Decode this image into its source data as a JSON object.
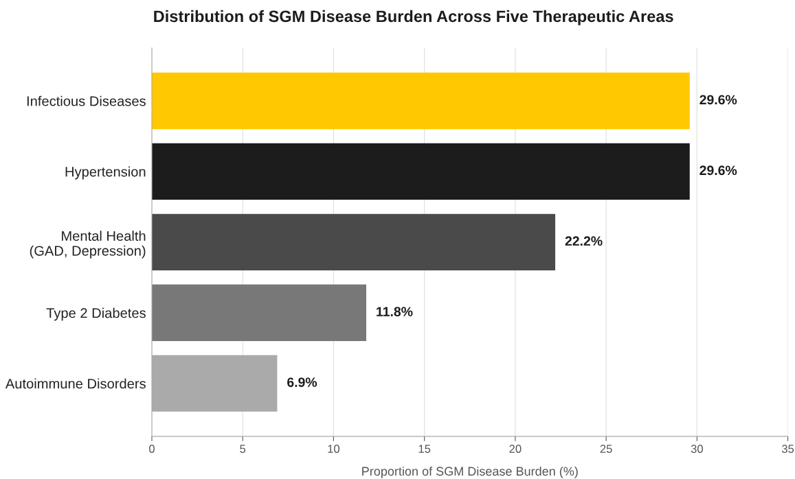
{
  "chart_data": {
    "type": "bar",
    "orientation": "horizontal",
    "title": "Distribution of SGM Disease Burden Across Five Therapeutic Areas",
    "xlabel": "Proportion of SGM Disease Burden (%)",
    "categories": [
      "Infectious Diseases",
      "Hypertension",
      "Mental Health\n(GAD, Depression)",
      "Type 2 Diabetes",
      "Autoimmune Disorders"
    ],
    "values": [
      29.6,
      29.6,
      22.2,
      11.8,
      6.9
    ],
    "colors": [
      "#ffc800",
      "#1c1c1c",
      "#4a4a4a",
      "#787878",
      "#aaaaaa"
    ],
    "value_labels": [
      "29.6%",
      "29.6%",
      "22.2%",
      "11.8%",
      "6.9%"
    ],
    "xlim": [
      0,
      35
    ],
    "xticks": [
      0,
      5,
      10,
      15,
      20,
      25,
      30,
      35
    ],
    "grid": "x",
    "legend": false
  }
}
